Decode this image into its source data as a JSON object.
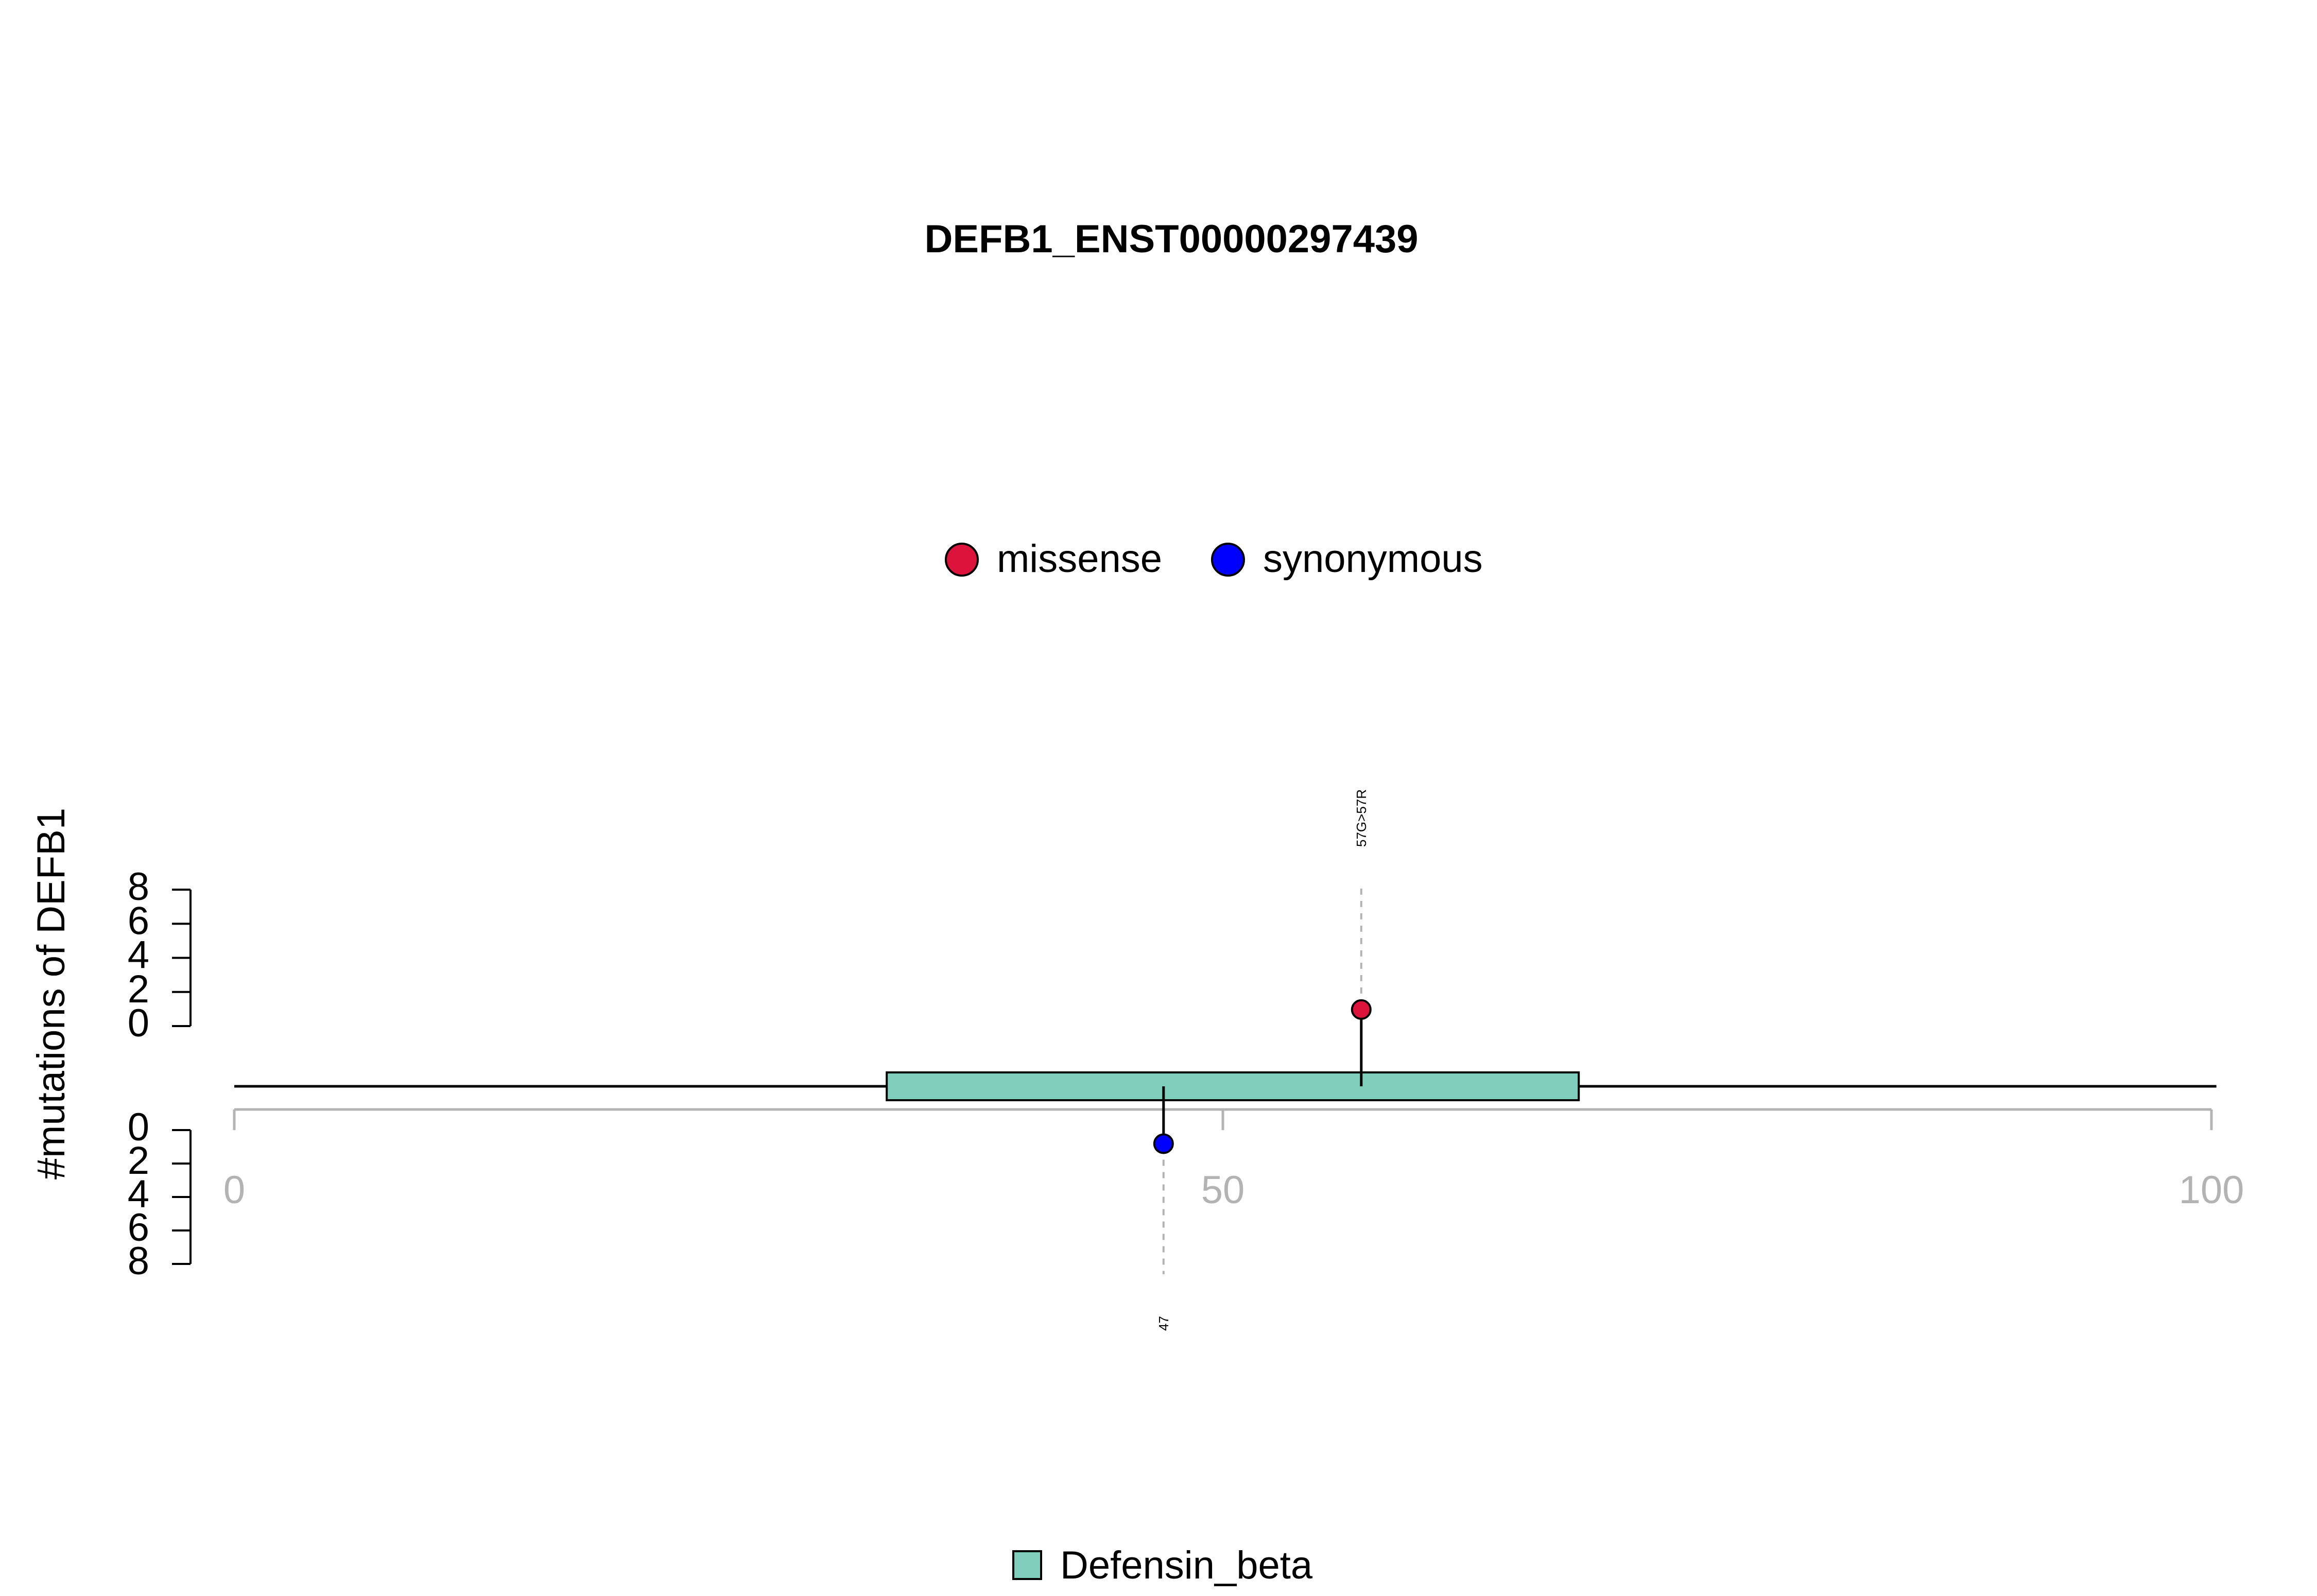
{
  "chart_data": {
    "type": "lollipop",
    "title": "DEFB1_ENST00000297439",
    "ylabel": "#mutations of DEFB1",
    "x_axis": {
      "range": [
        0,
        100
      ],
      "ticks": [
        "0",
        "50",
        "100"
      ]
    },
    "y_axis": {
      "range": [
        0,
        8
      ],
      "ticks": [
        "0",
        "2",
        "4",
        "6",
        "8"
      ]
    },
    "protein_length": 100,
    "domains": [
      {
        "name": "Defensin_beta",
        "start": 33,
        "end": 68,
        "color": "#7fcdbb"
      }
    ],
    "legend_mutations": [
      {
        "label": "missense",
        "color": "#dc143c"
      },
      {
        "label": "synonymous",
        "color": "#0000ff"
      }
    ],
    "mutations": [
      {
        "position": 57,
        "count": 1,
        "type": "missense",
        "label": "57G>57R",
        "side": "top",
        "color": "#dc143c"
      },
      {
        "position": 47,
        "count": 1,
        "type": "synonymous",
        "label": "47",
        "side": "bottom",
        "color": "#0000ff"
      }
    ]
  }
}
